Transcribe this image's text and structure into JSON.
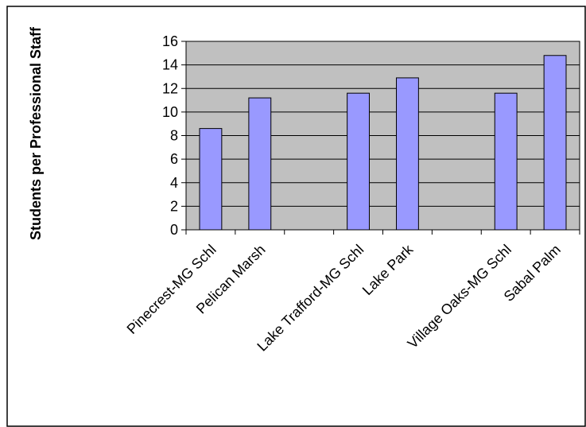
{
  "chart_data": {
    "type": "bar",
    "title": "",
    "xlabel": "",
    "ylabel": "Students per Professional Staff",
    "categories": [
      "Pinecrest-MG Schl",
      "Pelican Marsh",
      "",
      "Lake Trafford-MG Schl",
      "Lake Park",
      "",
      "Village Oaks-MG Schl",
      "Sabal Palm"
    ],
    "values": [
      8.6,
      11.2,
      null,
      11.6,
      12.9,
      null,
      11.6,
      14.8
    ],
    "ylim": [
      0,
      16
    ],
    "yticks": [
      0,
      2,
      4,
      6,
      8,
      10,
      12,
      14,
      16
    ],
    "grid": true,
    "legend": "none",
    "colors": {
      "bar_fill": "#9999ff",
      "bar_stroke": "#000000",
      "plot_bg": "#c0c0c0",
      "grid": "#000000",
      "border": "#000000"
    }
  }
}
